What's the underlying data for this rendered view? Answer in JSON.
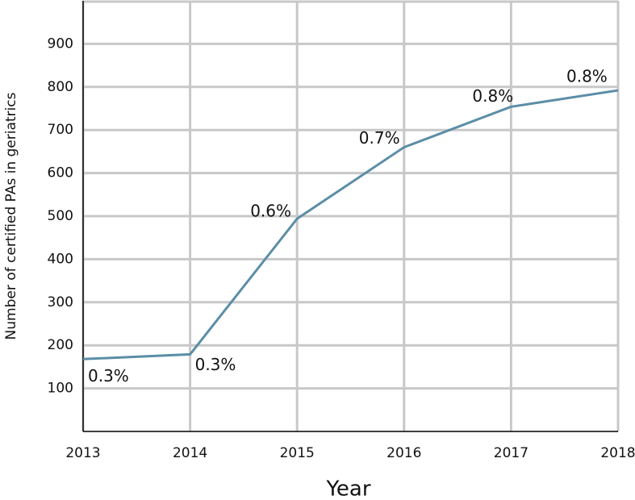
{
  "chart_data": {
    "type": "line",
    "x_label": "Year",
    "y_label": "Number of certified PAs in geriatrics",
    "x": [
      2013,
      2014,
      2015,
      2016,
      2017,
      2018
    ],
    "series": [
      {
        "color": "#5b8ea6",
        "values": [
          168,
          179,
          494,
          660,
          754,
          792
        ],
        "point_labels": [
          "0.3%",
          "0.3%",
          "0.6%",
          "0.7%",
          "0.8%",
          "0.8%"
        ]
      }
    ],
    "xlim": [
      2013,
      2018
    ],
    "xticks": [
      2013,
      2014,
      2015,
      2016,
      2017,
      2018
    ],
    "ylim": [
      0,
      1000
    ],
    "yticks": [
      100,
      200,
      300,
      400,
      500,
      600,
      700,
      800,
      900
    ],
    "grid": true
  }
}
